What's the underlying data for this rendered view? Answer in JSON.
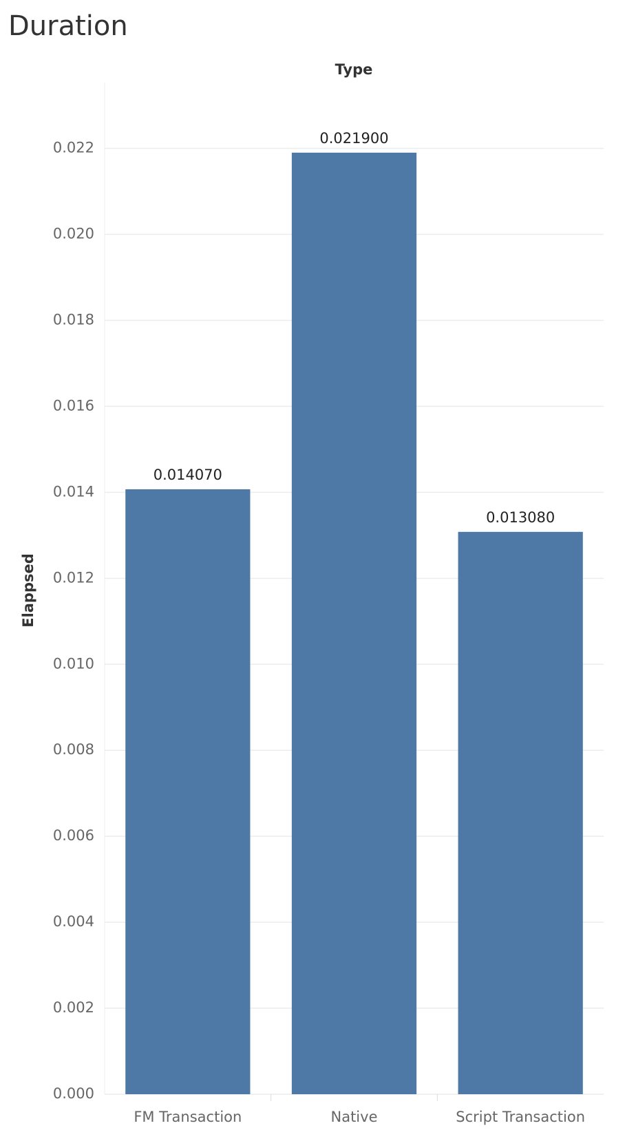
{
  "chart_data": {
    "type": "bar",
    "title": "Duration",
    "column_header": "Type",
    "y_label": "Elappsed",
    "categories": [
      "FM Transaction",
      "Native",
      "Script Transaction"
    ],
    "values": [
      0.01407,
      0.0219,
      0.01308
    ],
    "value_labels": [
      "0.014070",
      "0.021900",
      "0.013080"
    ],
    "color": "#4e79a7",
    "ylim": [
      0,
      0.02353
    ],
    "yticks": [
      {
        "value": 0,
        "label": "0.000"
      },
      {
        "value": 0.002,
        "label": "0.002"
      },
      {
        "value": 0.004,
        "label": "0.004"
      },
      {
        "value": 0.006,
        "label": "0.006"
      },
      {
        "value": 0.008,
        "label": "0.008"
      },
      {
        "value": 0.01,
        "label": "0.010"
      },
      {
        "value": 0.012,
        "label": "0.012"
      },
      {
        "value": 0.014,
        "label": "0.014"
      },
      {
        "value": 0.016,
        "label": "0.016"
      },
      {
        "value": 0.018,
        "label": "0.018"
      },
      {
        "value": 0.02,
        "label": "0.020"
      },
      {
        "value": 0.022,
        "label": "0.022"
      }
    ],
    "grid": true
  }
}
